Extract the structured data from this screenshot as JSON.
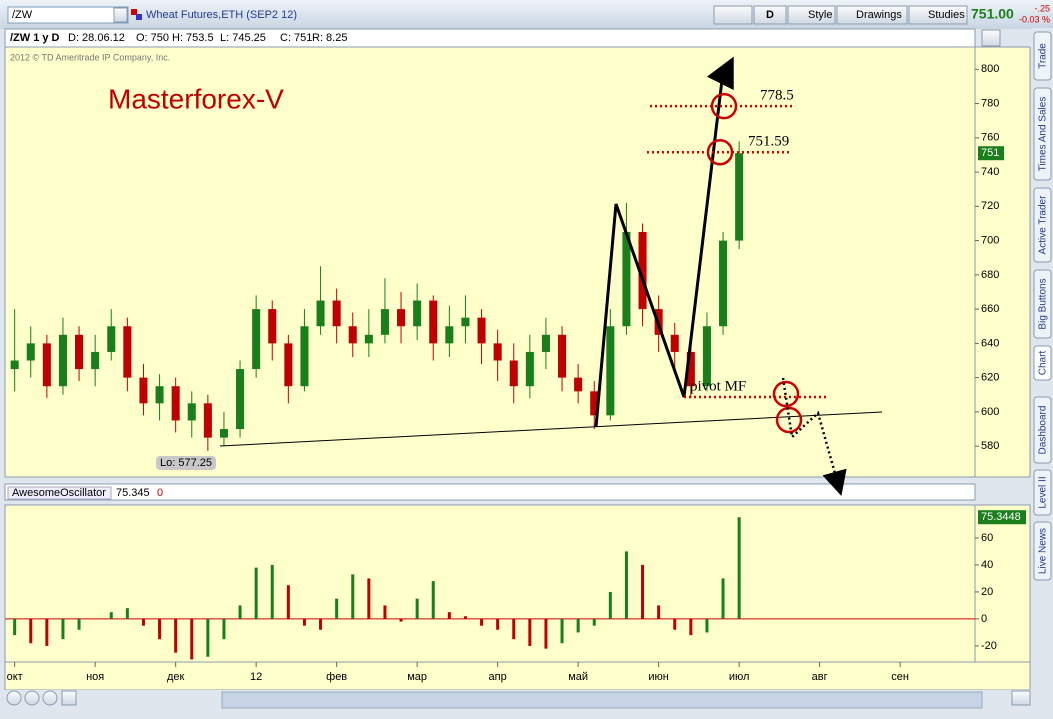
{
  "toolbar": {
    "symbol": "/ZW",
    "description": "Wheat Futures,ETH (SEP2 12)",
    "aggregation": "D",
    "style": "Style",
    "drawings": "Drawings",
    "studies": "Studies",
    "last": "751.00",
    "change": "-.25",
    "change_pct": "-0.03 %"
  },
  "info_bar": {
    "period": "/ZW 1 y D",
    "date": "D: 28.06.12",
    "open": "O: 750",
    "high": "H: 753.5",
    "low": "L: 745.25",
    "close": "C: 751",
    "range": "R: 8.25"
  },
  "chart_data": [
    {
      "type": "candlestick",
      "title": "Masterforex-V",
      "copyright": "2012 © TD Ameritrade IP Company, Inc.",
      "x": [
        0,
        0.2,
        0.4,
        0.6,
        0.8,
        1,
        1.2,
        1.4,
        1.6,
        1.8,
        2,
        2.2,
        2.4,
        2.6,
        2.8,
        3,
        3.2,
        3.4,
        3.6,
        3.8,
        4,
        4.2,
        4.4,
        4.6,
        4.8,
        5,
        5.2,
        5.4,
        5.6,
        5.8,
        6,
        6.2,
        6.4,
        6.6,
        6.8,
        7,
        7.2,
        7.4,
        7.6,
        7.8,
        8,
        8.2,
        8.4,
        8.6,
        8.8,
        9
      ],
      "open": [
        625,
        630,
        640,
        615,
        645,
        625,
        635,
        650,
        620,
        605,
        615,
        595,
        605,
        585,
        590,
        625,
        660,
        640,
        615,
        650,
        665,
        650,
        640,
        645,
        660,
        650,
        665,
        640,
        650,
        655,
        640,
        630,
        615,
        635,
        645,
        620,
        612,
        598,
        650,
        705,
        660,
        645,
        635,
        615,
        650,
        700
      ],
      "high": [
        660,
        650,
        645,
        655,
        650,
        645,
        660,
        655,
        628,
        622,
        620,
        612,
        610,
        600,
        630,
        668,
        665,
        645,
        660,
        685,
        672,
        658,
        660,
        678,
        670,
        675,
        668,
        662,
        668,
        660,
        648,
        640,
        645,
        655,
        650,
        628,
        618,
        660,
        722,
        710,
        668,
        652,
        640,
        658,
        705,
        758
      ],
      "low": [
        612,
        620,
        608,
        610,
        618,
        615,
        630,
        612,
        598,
        595,
        588,
        585,
        577.25,
        580,
        585,
        620,
        630,
        605,
        612,
        645,
        640,
        632,
        632,
        640,
        640,
        642,
        630,
        632,
        640,
        628,
        618,
        605,
        608,
        625,
        612,
        605,
        590,
        595,
        645,
        650,
        635,
        622,
        608,
        612,
        645,
        695
      ],
      "close": [
        630,
        640,
        615,
        645,
        625,
        635,
        650,
        620,
        605,
        615,
        595,
        605,
        585,
        590,
        625,
        660,
        640,
        615,
        650,
        665,
        650,
        640,
        645,
        660,
        650,
        665,
        640,
        650,
        655,
        640,
        630,
        615,
        635,
        645,
        620,
        612,
        598,
        650,
        705,
        660,
        645,
        635,
        615,
        650,
        700,
        751
      ],
      "up_color": "#1a7f1a",
      "down_color": "#c00000",
      "xlim": [
        -0.12,
        11.93
      ],
      "xticks": [
        {
          "value": 0,
          "label": "окт"
        },
        {
          "value": 1,
          "label": "ноя"
        },
        {
          "value": 2,
          "label": "дек"
        },
        {
          "value": 3,
          "label": "12"
        },
        {
          "value": 4,
          "label": "фев"
        },
        {
          "value": 5,
          "label": "мар"
        },
        {
          "value": 6,
          "label": "апр"
        },
        {
          "value": 7,
          "label": "май"
        },
        {
          "value": 8,
          "label": "июн"
        },
        {
          "value": 9,
          "label": "июл"
        },
        {
          "value": 10,
          "label": "авг"
        },
        {
          "value": 11,
          "label": "сен"
        }
      ],
      "ylim": [
        562,
        813
      ],
      "yticks": [
        580,
        600,
        620,
        640,
        660,
        680,
        700,
        720,
        740,
        760,
        780,
        800
      ],
      "last_price": 751,
      "levels": [
        778.5,
        751.59
      ],
      "pivot_label": "pivot MF",
      "low_label": "Lo: 577.25"
    },
    {
      "type": "bar",
      "title": "AwesomeOscillator",
      "header_value": "75.345",
      "header_extra": "0",
      "x": [
        0,
        0.2,
        0.4,
        0.6,
        0.8,
        1,
        1.2,
        1.4,
        1.6,
        1.8,
        2,
        2.2,
        2.4,
        2.6,
        2.8,
        3,
        3.2,
        3.4,
        3.6,
        3.8,
        4,
        4.2,
        4.4,
        4.6,
        4.8,
        5,
        5.2,
        5.4,
        5.6,
        5.8,
        6,
        6.2,
        6.4,
        6.6,
        6.8,
        7,
        7.2,
        7.4,
        7.6,
        7.8,
        8,
        8.2,
        8.4,
        8.6,
        8.8,
        9
      ],
      "values": [
        -12,
        -18,
        -20,
        -15,
        -8,
        0,
        5,
        8,
        -5,
        -15,
        -25,
        -30,
        -28,
        -15,
        10,
        38,
        40,
        25,
        -5,
        -8,
        15,
        33,
        30,
        10,
        -2,
        15,
        28,
        5,
        2,
        -5,
        -8,
        -15,
        -20,
        -22,
        -18,
        -10,
        -5,
        20,
        50,
        40,
        10,
        -8,
        -12,
        -10,
        30,
        75.345
      ],
      "up_color": "#1a7f1a",
      "down_color": "#c00000",
      "ylim": [
        -31.9,
        84.4
      ],
      "yticks": [
        -20,
        0,
        20,
        40,
        60
      ],
      "last_value": 75.3448
    }
  ],
  "side_tabs": [
    "Trade",
    "Times And Sales",
    "Active Trader",
    "Big Buttons",
    "Chart",
    "Dashboard",
    "Level II",
    "Live News"
  ]
}
